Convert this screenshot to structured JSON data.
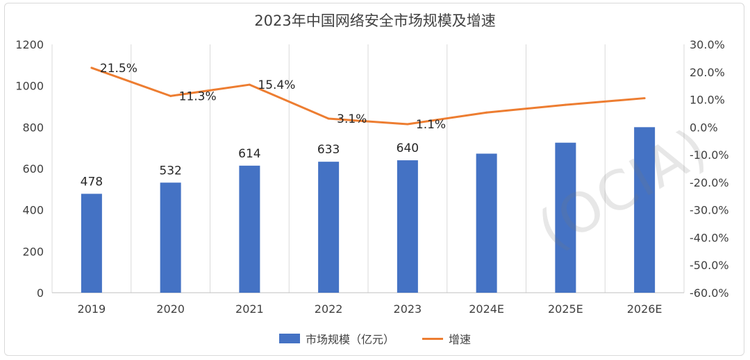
{
  "chart_data": {
    "type": "bar+line",
    "title": "2023年中国网络安全市场规模及增速",
    "categories": [
      "2019",
      "2020",
      "2021",
      "2022",
      "2023",
      "2024E",
      "2025E",
      "2026E"
    ],
    "series": [
      {
        "name": "市场规模（亿元）",
        "type": "bar",
        "axis": "left",
        "values": [
          478,
          532,
          614,
          633,
          640,
          672,
          725,
          800
        ],
        "labels": [
          "478",
          "532",
          "614",
          "633",
          "640",
          "",
          "",
          ""
        ],
        "color": "#4472c4"
      },
      {
        "name": "增速",
        "type": "line",
        "axis": "right",
        "values": [
          21.5,
          11.3,
          15.4,
          3.1,
          1.1,
          5.3,
          8.1,
          10.5
        ],
        "labels": [
          "21.5%",
          "11.3%",
          "15.4%",
          "3.1%",
          "1.1%",
          "",
          "",
          ""
        ],
        "color": "#ed7d31"
      }
    ],
    "y_left": {
      "min": 0,
      "max": 1200,
      "ticks": [
        "0",
        "200",
        "400",
        "600",
        "800",
        "1000",
        "1200"
      ]
    },
    "y_right": {
      "min": -60,
      "max": 30,
      "ticks": [
        "-60.0%",
        "-50.0%",
        "-40.0%",
        "-30.0%",
        "-20.0%",
        "-10.0%",
        "0.0%",
        "10.0%",
        "20.0%",
        "30.0%"
      ]
    },
    "grid": "vertical",
    "legend_position": "bottom"
  },
  "watermark": "(OCIA)"
}
